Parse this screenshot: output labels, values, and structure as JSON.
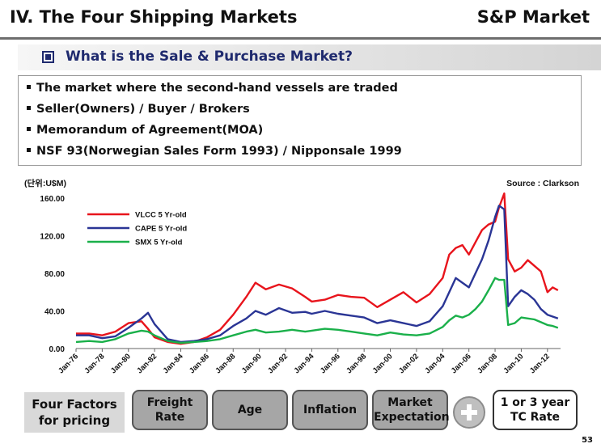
{
  "header": {
    "title": "IV. The Four Shipping Markets",
    "section": "S&P Market"
  },
  "subtitle": "What is the Sale & Purchase Market?",
  "bullets": [
    "The market where the second-hand vessels are traded",
    "Seller(Owners) / Buyer / Brokers",
    "Memorandum of Agreement(MOA)",
    "NSF 93(Norwegian Sales Form 1993) / Nipponsale 1999"
  ],
  "chart_data": {
    "type": "line",
    "title": "",
    "unit_label": "(단위:U$M)",
    "source": "Source : Clarkson",
    "xlabel": "",
    "ylabel": "",
    "xlim": [
      1976.0,
      2013.0
    ],
    "ylim": [
      0,
      160
    ],
    "yticks": [
      0,
      40,
      80,
      120,
      160
    ],
    "ytick_labels": [
      "0.00",
      "40.00",
      "80.00",
      "120.00",
      "160.00"
    ],
    "xticks": [
      1976,
      1978,
      1980,
      1982,
      1984,
      1986,
      1988,
      1990,
      1992,
      1994,
      1996,
      1998,
      2000,
      2002,
      2004,
      2006,
      2008,
      2010,
      2012
    ],
    "xtick_labels": [
      "Jan-76",
      "Jan-78",
      "Jan-80",
      "Jan-82",
      "Jan-84",
      "Jan-86",
      "Jan-88",
      "Jan-90",
      "Jan-92",
      "Jan-94",
      "Jan-96",
      "Jan-98",
      "Jan-00",
      "Jan-02",
      "Jan-04",
      "Jan-06",
      "Jan-08",
      "Jan-10",
      "Jan-12"
    ],
    "grid": false,
    "legend": "top-left",
    "series": [
      {
        "name": "VLCC 5 Yr-old",
        "color": "#e8141c",
        "points": [
          [
            1976.0,
            16
          ],
          [
            1977.0,
            16
          ],
          [
            1978.0,
            14
          ],
          [
            1979.0,
            18
          ],
          [
            1980.0,
            27
          ],
          [
            1981.0,
            29
          ],
          [
            1981.5,
            21
          ],
          [
            1982.0,
            12
          ],
          [
            1983.0,
            7
          ],
          [
            1984.0,
            5
          ],
          [
            1985.0,
            7
          ],
          [
            1986.0,
            12
          ],
          [
            1987.0,
            20
          ],
          [
            1988.0,
            36
          ],
          [
            1989.0,
            55
          ],
          [
            1989.7,
            70
          ],
          [
            1990.5,
            63
          ],
          [
            1991.5,
            68
          ],
          [
            1992.5,
            64
          ],
          [
            1993.5,
            55
          ],
          [
            1994.0,
            50
          ],
          [
            1995.0,
            52
          ],
          [
            1996.0,
            57
          ],
          [
            1997.0,
            55
          ],
          [
            1998.0,
            54
          ],
          [
            1999.0,
            44
          ],
          [
            2000.0,
            52
          ],
          [
            2001.0,
            60
          ],
          [
            2002.0,
            49
          ],
          [
            2003.0,
            58
          ],
          [
            2004.0,
            75
          ],
          [
            2004.5,
            100
          ],
          [
            2005.0,
            107
          ],
          [
            2005.5,
            110
          ],
          [
            2006.0,
            100
          ],
          [
            2006.5,
            113
          ],
          [
            2007.0,
            126
          ],
          [
            2007.5,
            132
          ],
          [
            2008.0,
            135
          ],
          [
            2008.3,
            150
          ],
          [
            2008.7,
            165
          ],
          [
            2009.0,
            95
          ],
          [
            2009.5,
            82
          ],
          [
            2010.0,
            86
          ],
          [
            2010.5,
            94
          ],
          [
            2011.0,
            88
          ],
          [
            2011.5,
            82
          ],
          [
            2012.0,
            60
          ],
          [
            2012.4,
            65
          ],
          [
            2012.8,
            62
          ]
        ]
      },
      {
        "name": "CAPE 5 Yr-old",
        "color": "#2a3595",
        "points": [
          [
            1976.0,
            14
          ],
          [
            1977.0,
            14
          ],
          [
            1978.0,
            11
          ],
          [
            1979.0,
            13
          ],
          [
            1980.0,
            22
          ],
          [
            1981.0,
            32
          ],
          [
            1981.5,
            38
          ],
          [
            1982.0,
            26
          ],
          [
            1983.0,
            10
          ],
          [
            1984.0,
            7
          ],
          [
            1985.0,
            8
          ],
          [
            1986.0,
            10
          ],
          [
            1987.0,
            14
          ],
          [
            1988.0,
            24
          ],
          [
            1989.0,
            32
          ],
          [
            1989.7,
            40
          ],
          [
            1990.5,
            36
          ],
          [
            1991.5,
            43
          ],
          [
            1992.5,
            38
          ],
          [
            1993.5,
            39
          ],
          [
            1994.0,
            37
          ],
          [
            1995.0,
            40
          ],
          [
            1996.0,
            37
          ],
          [
            1997.0,
            35
          ],
          [
            1998.0,
            33
          ],
          [
            1999.0,
            27
          ],
          [
            2000.0,
            30
          ],
          [
            2001.0,
            27
          ],
          [
            2002.0,
            24
          ],
          [
            2003.0,
            29
          ],
          [
            2004.0,
            45
          ],
          [
            2004.5,
            60
          ],
          [
            2005.0,
            75
          ],
          [
            2005.5,
            70
          ],
          [
            2006.0,
            65
          ],
          [
            2006.5,
            80
          ],
          [
            2007.0,
            95
          ],
          [
            2007.5,
            115
          ],
          [
            2008.0,
            140
          ],
          [
            2008.3,
            152
          ],
          [
            2008.7,
            148
          ],
          [
            2009.0,
            45
          ],
          [
            2009.5,
            55
          ],
          [
            2010.0,
            62
          ],
          [
            2010.5,
            58
          ],
          [
            2011.0,
            52
          ],
          [
            2011.5,
            42
          ],
          [
            2012.0,
            36
          ],
          [
            2012.4,
            34
          ],
          [
            2012.8,
            32
          ]
        ]
      },
      {
        "name": "SMX 5 Yr-old",
        "color": "#1ab04a",
        "points": [
          [
            1976.0,
            7
          ],
          [
            1977.0,
            8
          ],
          [
            1978.0,
            7
          ],
          [
            1979.0,
            10
          ],
          [
            1980.0,
            16
          ],
          [
            1981.0,
            19
          ],
          [
            1981.5,
            18
          ],
          [
            1982.0,
            14
          ],
          [
            1983.0,
            8
          ],
          [
            1984.0,
            6
          ],
          [
            1985.0,
            7
          ],
          [
            1986.0,
            8
          ],
          [
            1987.0,
            10
          ],
          [
            1988.0,
            14
          ],
          [
            1989.0,
            18
          ],
          [
            1989.7,
            20
          ],
          [
            1990.5,
            17
          ],
          [
            1991.5,
            18
          ],
          [
            1992.5,
            20
          ],
          [
            1993.5,
            18
          ],
          [
            1994.0,
            19
          ],
          [
            1995.0,
            21
          ],
          [
            1996.0,
            20
          ],
          [
            1997.0,
            18
          ],
          [
            1998.0,
            16
          ],
          [
            1999.0,
            14
          ],
          [
            2000.0,
            17
          ],
          [
            2001.0,
            15
          ],
          [
            2002.0,
            14
          ],
          [
            2003.0,
            16
          ],
          [
            2004.0,
            23
          ],
          [
            2004.5,
            30
          ],
          [
            2005.0,
            35
          ],
          [
            2005.5,
            33
          ],
          [
            2006.0,
            36
          ],
          [
            2006.5,
            42
          ],
          [
            2007.0,
            50
          ],
          [
            2007.5,
            62
          ],
          [
            2008.0,
            75
          ],
          [
            2008.3,
            73
          ],
          [
            2008.7,
            73
          ],
          [
            2009.0,
            25
          ],
          [
            2009.5,
            27
          ],
          [
            2010.0,
            33
          ],
          [
            2010.5,
            32
          ],
          [
            2011.0,
            31
          ],
          [
            2011.5,
            28
          ],
          [
            2012.0,
            25
          ],
          [
            2012.4,
            24
          ],
          [
            2012.8,
            22
          ]
        ]
      }
    ]
  },
  "footer": {
    "factors_label_line1": "Four Factors",
    "factors_label_line2": "for pricing",
    "factor1_line1": "Freight",
    "factor1_line2": "Rate",
    "factor2": "Age",
    "factor3": "Inflation",
    "factor4_line1": "Market",
    "factor4_line2": "Expectation",
    "plus_icon": "plus-icon",
    "tc_line1": "1 or 3 year",
    "tc_line2": "TC Rate"
  },
  "page_number": "53"
}
